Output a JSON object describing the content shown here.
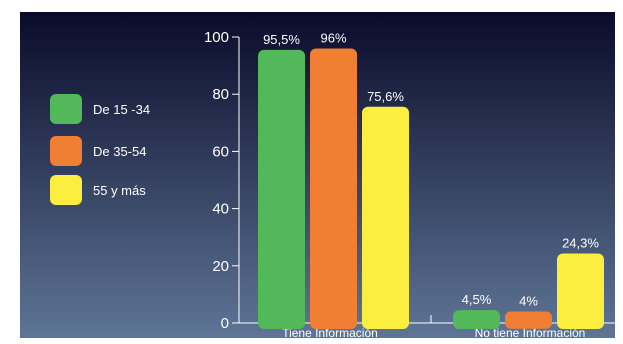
{
  "chart_data": {
    "type": "bar",
    "categories": [
      "Tiene Información",
      "No tiene Información"
    ],
    "series": [
      {
        "name": "De 15 -34",
        "values": [
          95.5,
          4.5
        ],
        "labels": [
          "95,5%",
          "4,5%"
        ],
        "color": "#52b85a"
      },
      {
        "name": "De 35-54",
        "values": [
          96,
          4
        ],
        "labels": [
          "96%",
          "4%"
        ],
        "color": "#f07f33"
      },
      {
        "name": "55 y más",
        "values": [
          75.6,
          24.3
        ],
        "labels": [
          "75,6%",
          "24,3%"
        ],
        "color": "#fbee3f"
      }
    ],
    "ylim": [
      0,
      100
    ],
    "yticks": [
      "0",
      "20",
      "40",
      "60",
      "80",
      "100"
    ],
    "legend_position": "left",
    "grid": false,
    "background": {
      "top": "#0a0b2a",
      "bottom": "#5e7595"
    }
  }
}
